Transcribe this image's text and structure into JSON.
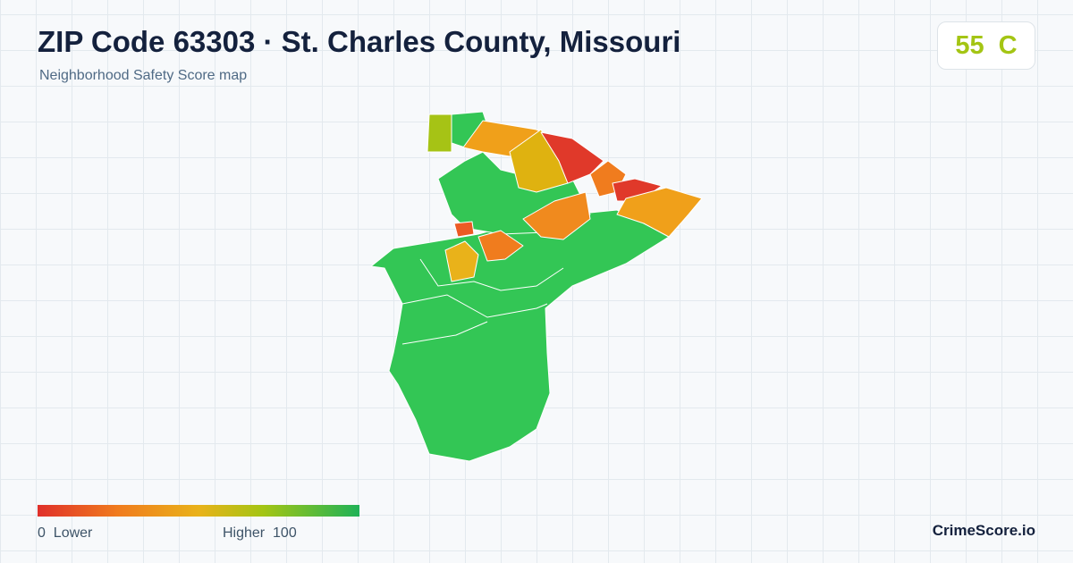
{
  "header": {
    "title": "ZIP Code 63303 · St. Charles County, Missouri",
    "subtitle": "Neighborhood Safety Score map"
  },
  "score": {
    "value": "55",
    "grade": "C"
  },
  "legend": {
    "min": "0",
    "min_label": "Lower",
    "max_label": "Higher",
    "max": "100"
  },
  "brand": "CrimeScore.io"
}
